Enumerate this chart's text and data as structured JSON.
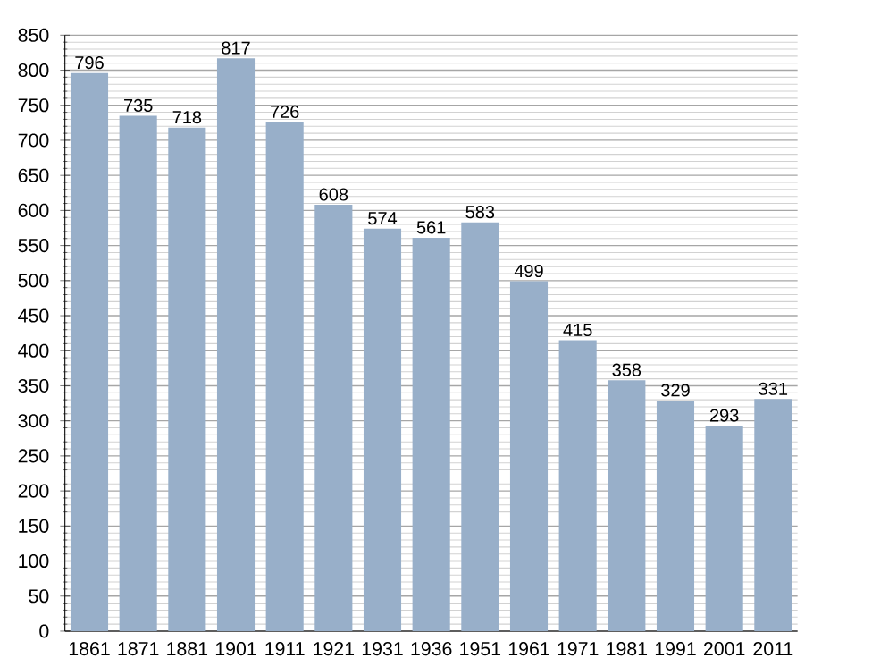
{
  "chart_data": {
    "type": "bar",
    "categories": [
      "1861",
      "1871",
      "1881",
      "1901",
      "1911",
      "1921",
      "1931",
      "1936",
      "1951",
      "1961",
      "1971",
      "1981",
      "1991",
      "2001",
      "2011"
    ],
    "values": [
      796,
      735,
      718,
      817,
      726,
      608,
      574,
      561,
      583,
      499,
      415,
      358,
      329,
      293,
      331
    ],
    "color": "#98afc9",
    "ylim": [
      0,
      850
    ],
    "yticks": [
      0,
      50,
      100,
      150,
      200,
      250,
      300,
      350,
      400,
      450,
      500,
      550,
      600,
      650,
      700,
      750,
      800,
      850
    ],
    "grid": "y",
    "data_labels": true
  }
}
